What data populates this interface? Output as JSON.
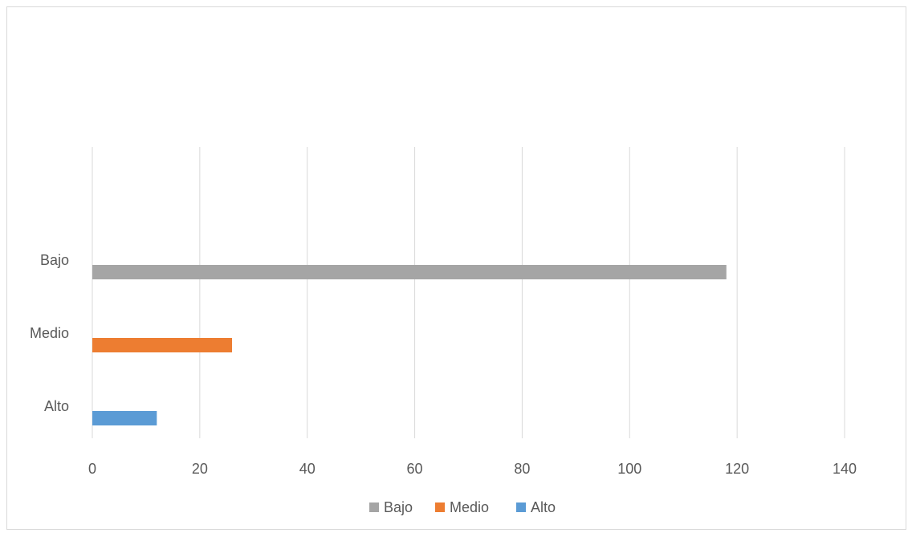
{
  "chart_data": {
    "type": "bar",
    "orientation": "horizontal",
    "title": "",
    "xlabel": "",
    "ylabel": "",
    "xlim": [
      0,
      140
    ],
    "x_ticks": [
      0,
      20,
      40,
      60,
      80,
      100,
      120,
      140
    ],
    "grid": "vertical",
    "legend_position": "bottom",
    "series": [
      {
        "name": "Bajo",
        "category": "Bajo",
        "value": 118,
        "color": "#a5a5a5"
      },
      {
        "name": "Medio",
        "category": "Medio",
        "value": 26,
        "color": "#ed7d31"
      },
      {
        "name": "Alto",
        "category": "Alto",
        "value": 12,
        "color": "#5b9bd5"
      }
    ]
  }
}
